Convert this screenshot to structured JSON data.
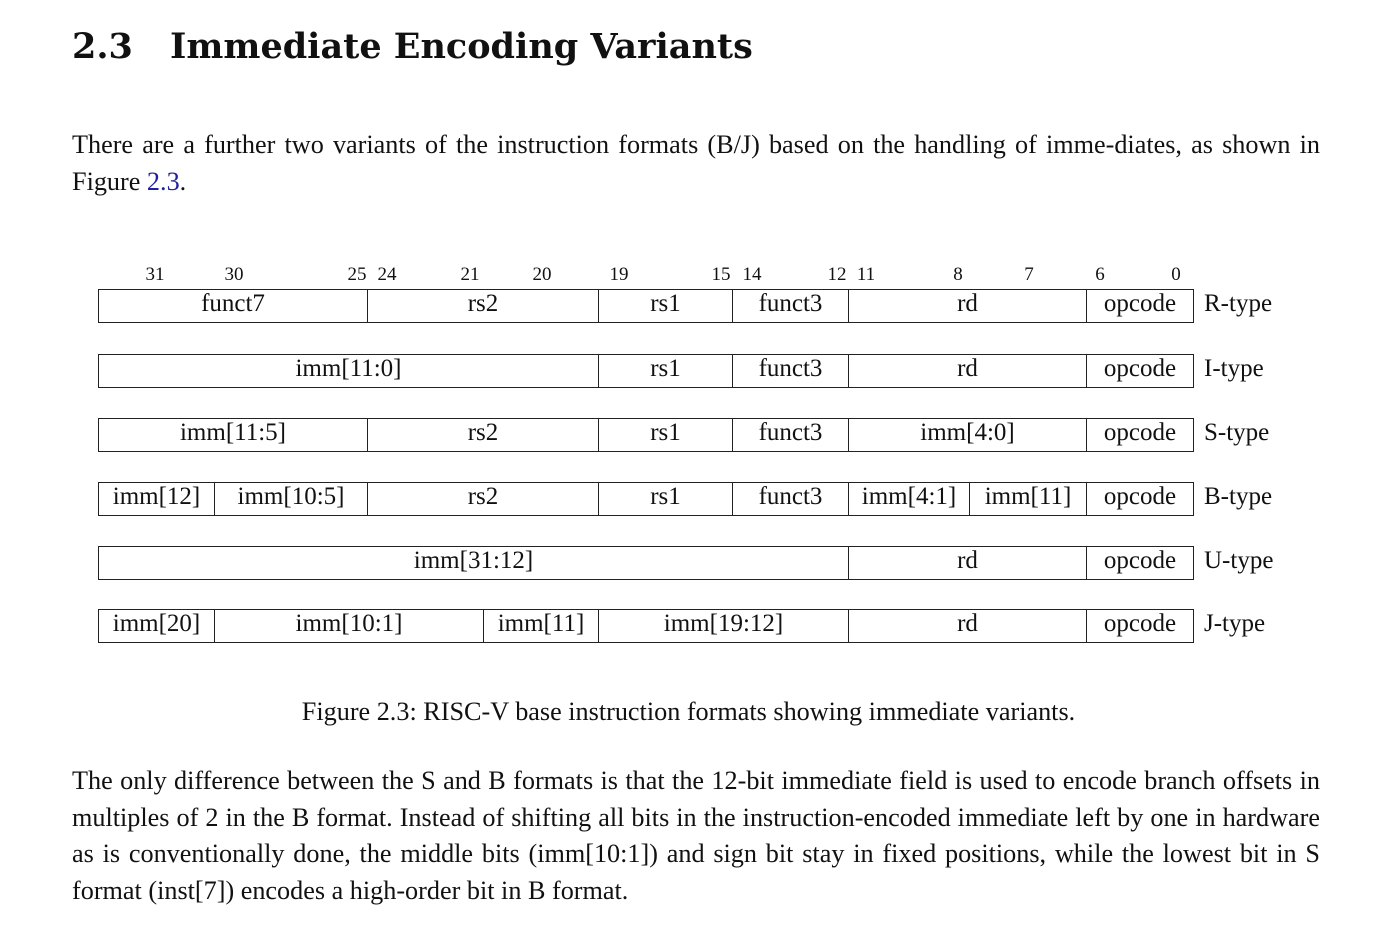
{
  "section": {
    "number": "2.3",
    "title": "Immediate Encoding Variants"
  },
  "intro": {
    "text_before": "There are a further two variants of the instruction formats (B/J) based on the handling of imme-diates, as shown in Figure ",
    "figure_ref": "2.3",
    "text_after": "."
  },
  "figure": {
    "bit_labels": [
      "31",
      "30",
      "25",
      "24",
      "21",
      "20",
      "19",
      "15",
      "14",
      "12",
      "11",
      "8",
      "7",
      "6",
      "0"
    ],
    "rows": [
      {
        "type": "R-type",
        "fields": [
          "funct7",
          "rs2",
          "rs1",
          "funct3",
          "rd",
          "opcode"
        ]
      },
      {
        "type": "I-type",
        "fields": [
          "imm[11:0]",
          "rs1",
          "funct3",
          "rd",
          "opcode"
        ]
      },
      {
        "type": "S-type",
        "fields": [
          "imm[11:5]",
          "rs2",
          "rs1",
          "funct3",
          "imm[4:0]",
          "opcode"
        ]
      },
      {
        "type": "B-type",
        "fields": [
          "imm[12]",
          "imm[10:5]",
          "rs2",
          "rs1",
          "funct3",
          "imm[4:1]",
          "imm[11]",
          "opcode"
        ]
      },
      {
        "type": "U-type",
        "fields": [
          "imm[31:12]",
          "rd",
          "opcode"
        ]
      },
      {
        "type": "J-type",
        "fields": [
          "imm[20]",
          "imm[10:1]",
          "imm[11]",
          "imm[19:12]",
          "rd",
          "opcode"
        ]
      }
    ],
    "caption": "Figure 2.3: RISC-V base instruction formats showing immediate variants."
  },
  "body": {
    "text": "The only difference between the S and B formats is that the 12-bit immediate field is used to encode branch offsets in multiples of 2 in the B format. Instead of shifting all bits in the instruction-encoded immediate left by one in hardware as is conventionally done, the middle bits (imm[10:1]) and sign bit stay in fixed positions, while the lowest bit in S format (inst[7]) encodes a high-order bit in B format."
  }
}
